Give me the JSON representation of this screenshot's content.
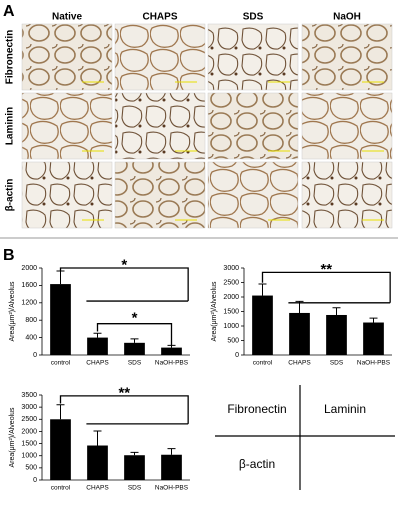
{
  "panel_a": {
    "label": "A",
    "columns": [
      "Native",
      "CHAPS",
      "SDS",
      "NaOH"
    ],
    "rows": [
      "Fibronectin",
      "Laminin",
      "β-actin"
    ]
  },
  "panel_b": {
    "label": "B",
    "charts": [
      {
        "type": "bar",
        "ylabel": "Area(μm²)/Alveolus",
        "categories": [
          "control",
          "CHAPS",
          "SDS",
          "NaOH-PBS"
        ],
        "values": [
          1630,
          400,
          280,
          170
        ],
        "errors": [
          300,
          100,
          90,
          50
        ],
        "color": "#000000",
        "ylim": [
          0,
          2000
        ],
        "yticks": [
          0,
          400,
          800,
          1200,
          1600,
          2000
        ],
        "annotations": [
          "*",
          "*"
        ]
      },
      {
        "type": "bar",
        "ylabel": "Area(μm²)/Alveolus",
        "categories": [
          "control",
          "CHAPS",
          "SDS",
          "NaOH-PBS"
        ],
        "values": [
          2050,
          1450,
          1380,
          1120
        ],
        "errors": [
          400,
          400,
          250,
          150
        ],
        "color": "#000000",
        "ylim": [
          0,
          3000
        ],
        "yticks": [
          0,
          500,
          1000,
          1500,
          2000,
          2500,
          3000
        ],
        "annotations": [
          "**"
        ]
      },
      {
        "type": "bar",
        "ylabel": "Area(μm²)/Alveolus",
        "categories": [
          "control",
          "CHAPS",
          "SDS",
          "NaOH-PBS"
        ],
        "values": [
          2500,
          1420,
          1020,
          1040
        ],
        "errors": [
          600,
          600,
          120,
          250
        ],
        "color": "#000000",
        "ylim": [
          0,
          3500
        ],
        "yticks": [
          0,
          500,
          1000,
          1500,
          2000,
          2500,
          3000,
          3500
        ],
        "annotations": [
          "**"
        ]
      }
    ],
    "key": [
      "Fibronectin",
      "Laminin",
      "β-actin"
    ]
  }
}
